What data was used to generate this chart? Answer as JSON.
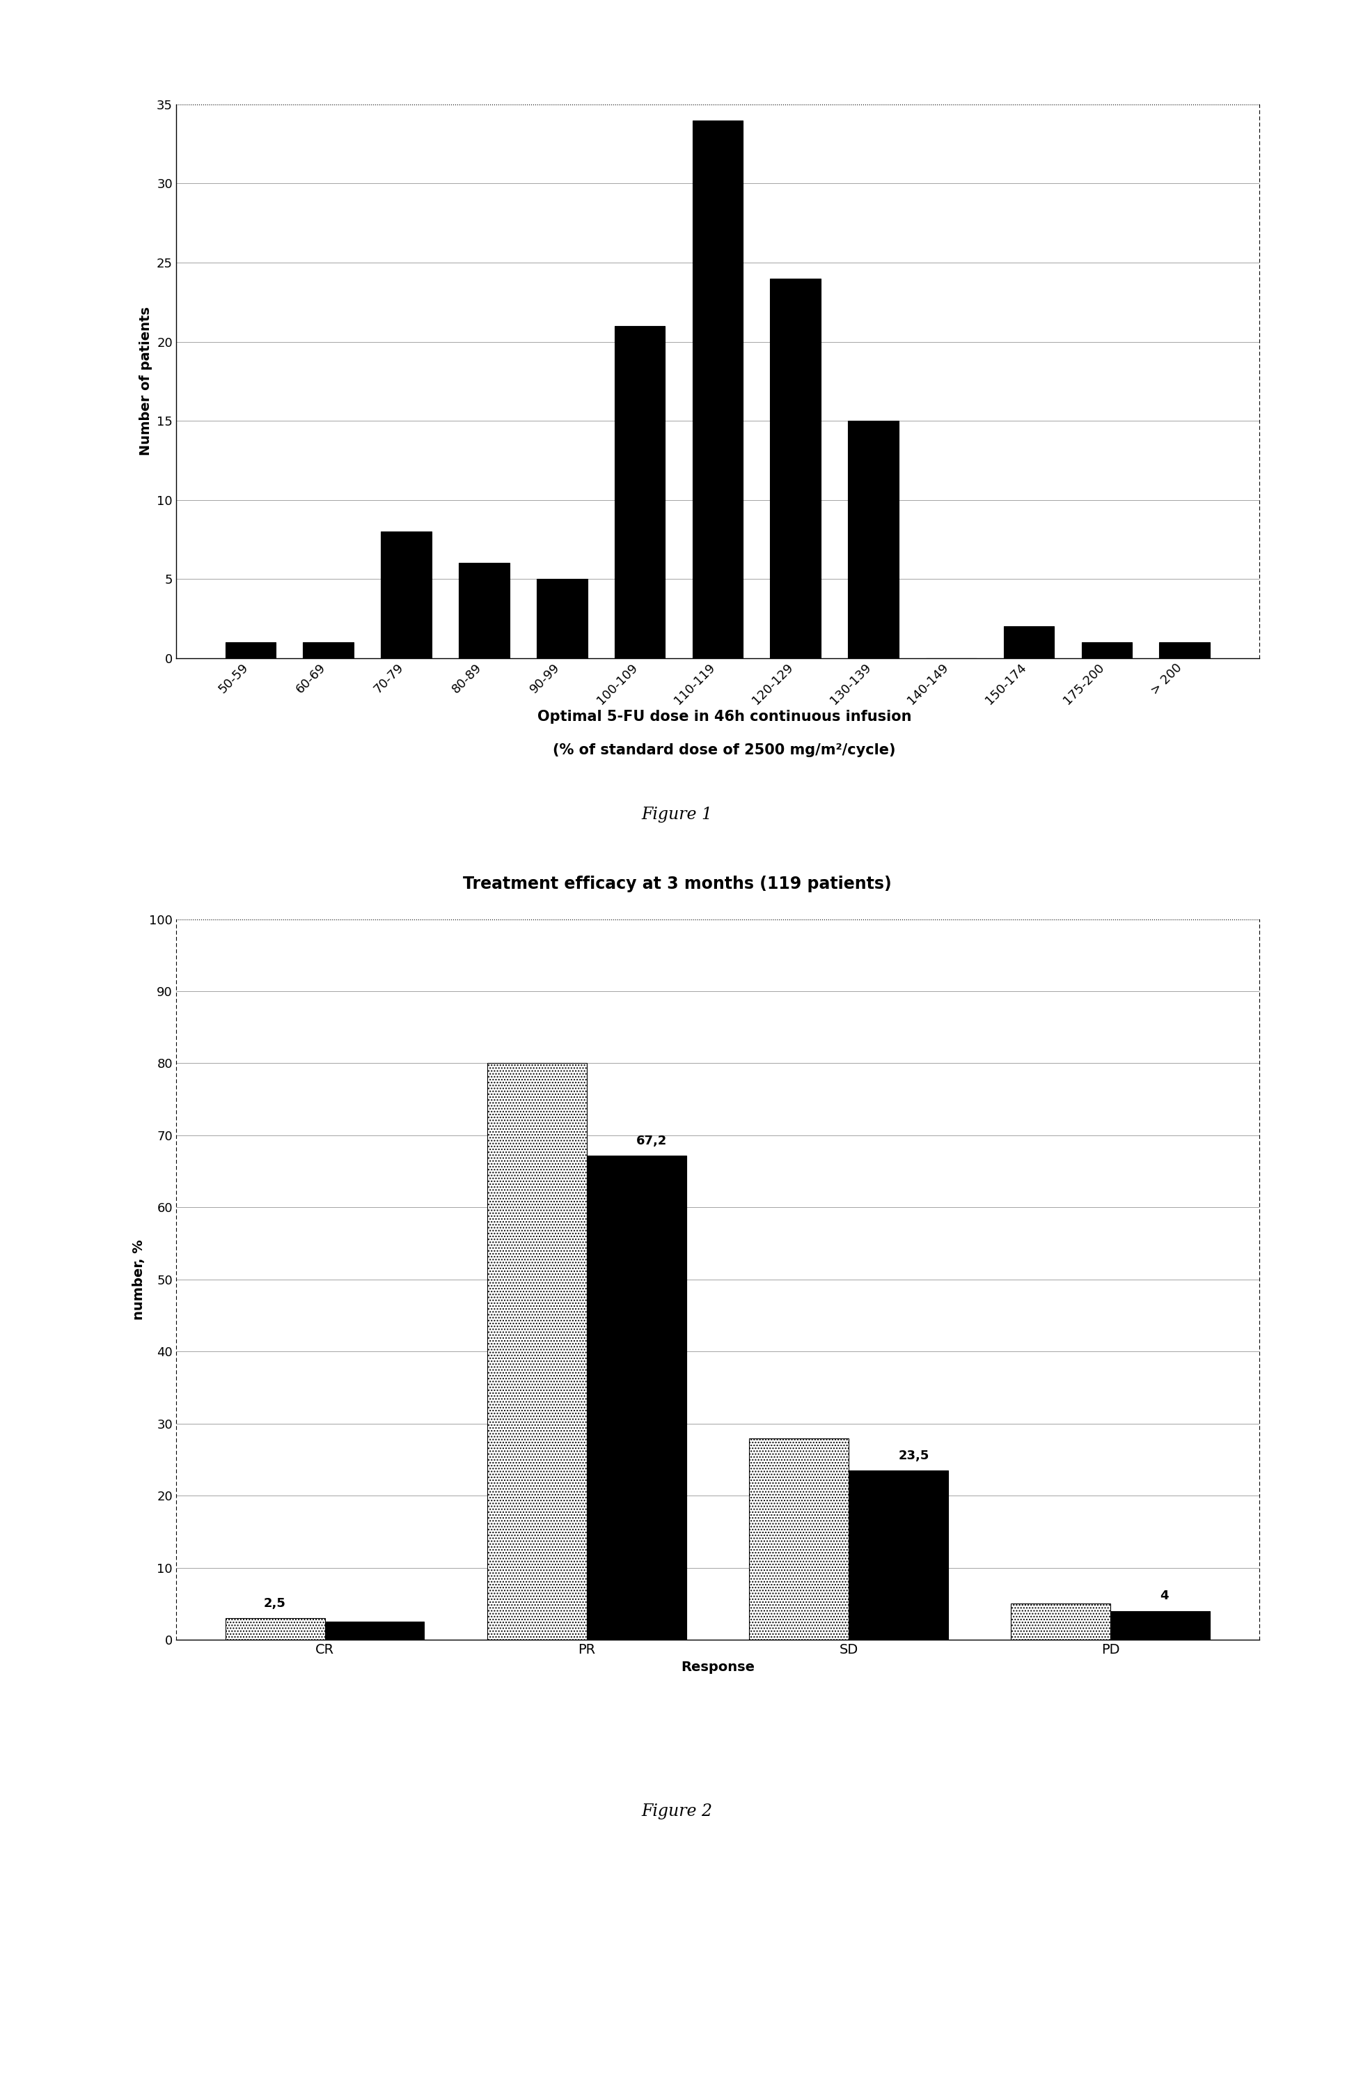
{
  "fig1": {
    "categories": [
      "50-59",
      "60-69",
      "70-79",
      "80-89",
      "90-99",
      "100-109",
      "110-119",
      "120-129",
      "130-139",
      "140-149",
      "150-174",
      "175-200",
      "> 200"
    ],
    "values": [
      1,
      1,
      8,
      6,
      5,
      21,
      34,
      24,
      15,
      0,
      2,
      1,
      1
    ],
    "ylabel": "Number of patients",
    "xlabel_line1": "Optimal 5-FU dose in 46h continuous infusion",
    "xlabel_line2": "(% of standard dose of 2500 mg/m²/cycle)",
    "ylim": [
      0,
      35
    ],
    "yticks": [
      0,
      5,
      10,
      15,
      20,
      25,
      30,
      35
    ],
    "bar_color": "#000000",
    "figure_label": "Figure 1"
  },
  "fig2": {
    "title": "Treatment efficacy at 3 months (119 patients)",
    "categories": [
      "CR",
      "PR",
      "SD",
      "PD"
    ],
    "values_gray": [
      3,
      80,
      28,
      5
    ],
    "values_black": [
      2.5,
      67.2,
      23.5,
      4
    ],
    "labels_black": [
      "",
      "67,2",
      "23,5",
      "4"
    ],
    "labels_gray": [
      "2,5",
      "",
      "",
      ""
    ],
    "ylabel": "number, %",
    "xlabel": "Response",
    "ylim": [
      0,
      100
    ],
    "yticks": [
      0,
      10,
      20,
      30,
      40,
      50,
      60,
      70,
      80,
      90,
      100
    ],
    "bar_color_black": "#000000",
    "figure_label": "Figure 2"
  },
  "background_color": "#ffffff"
}
